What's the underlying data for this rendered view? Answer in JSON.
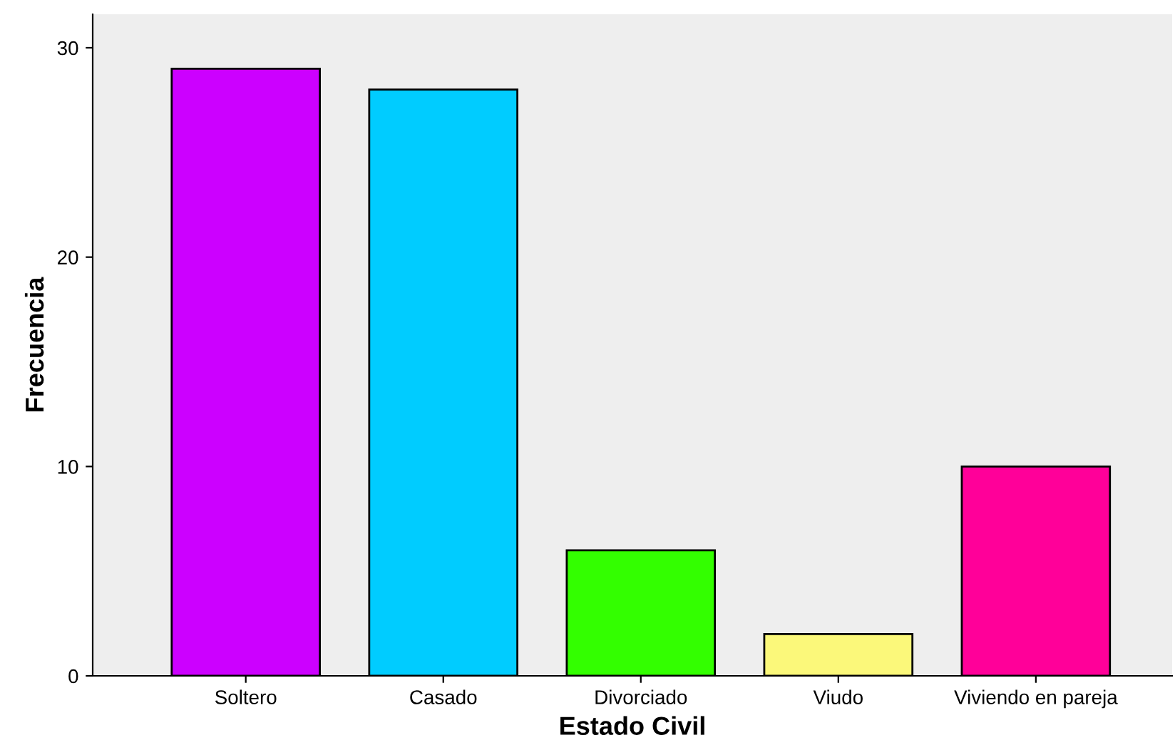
{
  "chart_data": {
    "type": "bar",
    "xlabel": "Estado Civil",
    "ylabel": "Frecuencia",
    "categories": [
      "Soltero",
      "Casado",
      "Divorciado",
      "Viudo",
      "Viviendo en pareja"
    ],
    "values": [
      29,
      28,
      6,
      2,
      10
    ],
    "colors": [
      "#cc00ff",
      "#00ccff",
      "#33ff00",
      "#fbf87a",
      "#ff0099"
    ],
    "ylim": [
      0,
      31.6
    ],
    "yticks": [
      0,
      10,
      20,
      30
    ],
    "grid": false,
    "legend": false
  }
}
